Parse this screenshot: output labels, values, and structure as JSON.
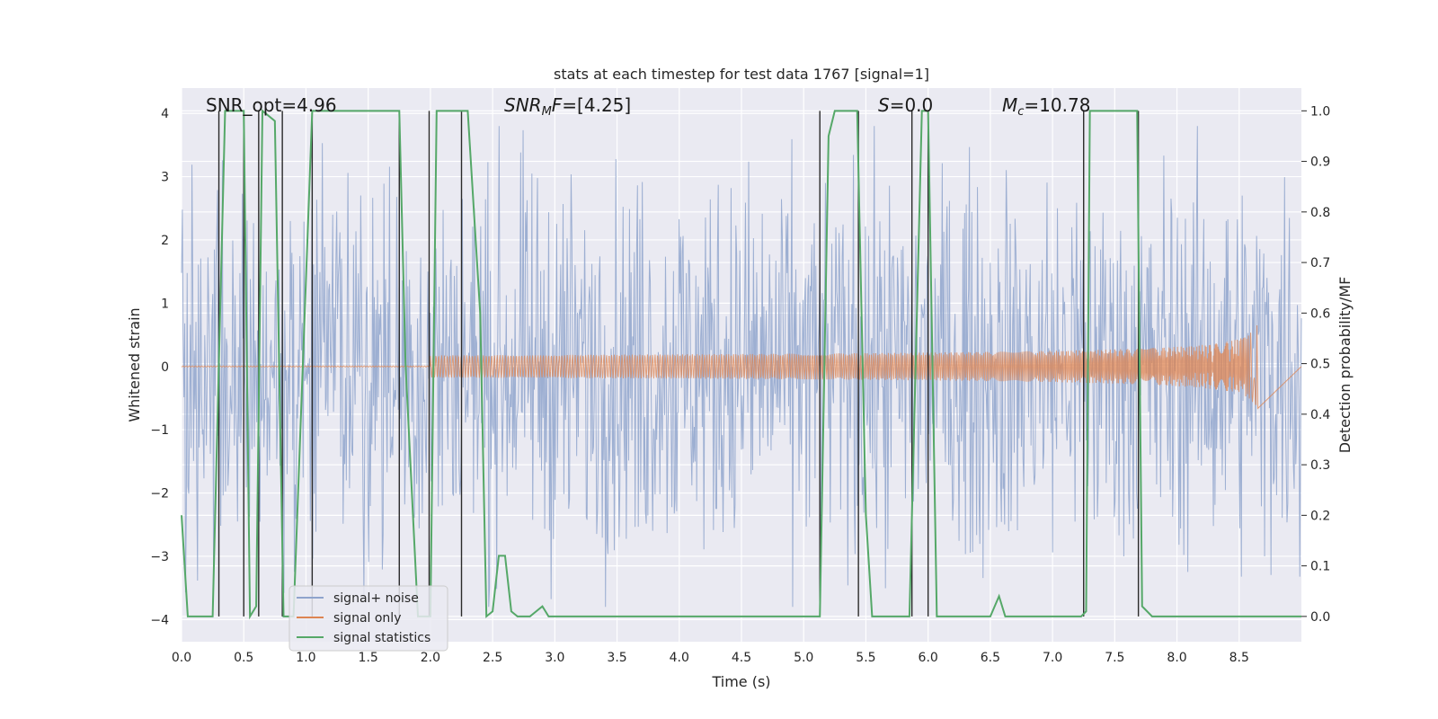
{
  "chart_data": {
    "type": "line",
    "title": "stats at each timestep for test data 1767 [signal=1]",
    "xlabel": "Time (s)",
    "ylabel_left": "Whitened strain",
    "ylabel_right": "Detection probability/MF",
    "xlim": [
      0.0,
      9.0
    ],
    "ylim_left": [
      -4.35,
      4.4
    ],
    "ylim_right": [
      -0.05,
      1.045
    ],
    "x_ticks": [
      "0.0",
      "0.5",
      "1.0",
      "1.5",
      "2.0",
      "2.5",
      "3.0",
      "3.5",
      "4.0",
      "4.5",
      "5.0",
      "5.5",
      "6.0",
      "6.5",
      "7.0",
      "7.5",
      "8.0",
      "8.5"
    ],
    "y_left_ticks": [
      "4",
      "3",
      "2",
      "1",
      "0",
      "−1",
      "−2",
      "−3",
      "−4"
    ],
    "y_right_ticks": [
      "1.0",
      "0.9",
      "0.8",
      "0.7",
      "0.6",
      "0.5",
      "0.4",
      "0.3",
      "0.2",
      "0.1",
      "0.0"
    ],
    "grid": true,
    "annotations": [
      {
        "text": "SNR_opt=4.96",
        "x": 0.2
      },
      {
        "text": "=[4.25]",
        "italic_prefix": "SNR",
        "italic_sub": "M",
        "italic_suffix": "F",
        "x": 2.6
      },
      {
        "text": "=0.0",
        "italic_prefix": "S",
        "x": 5.6
      },
      {
        "text": "=10.78",
        "italic_prefix": "M",
        "italic_sub": "c",
        "x": 6.6
      }
    ],
    "legend": {
      "placement": "lower-left",
      "entries": [
        "signal+ noise",
        "signal only",
        "signal statistics"
      ]
    },
    "series": [
      {
        "name": "signal+ noise",
        "color": "#8fa4cc",
        "kind": "noise",
        "amplitude_left": 2.3,
        "peak_left": 3.8
      },
      {
        "name": "signal only",
        "color": "#dd8452",
        "kind": "chirp",
        "t_merge": 8.65,
        "peak_left": 0.75
      },
      {
        "name": "signal statistics",
        "color": "#55a868",
        "axis": "right",
        "x": [
          0.0,
          0.05,
          0.25,
          0.3,
          0.35,
          0.5,
          0.55,
          0.6,
          0.65,
          0.75,
          0.82,
          0.9,
          1.05,
          1.1,
          1.5,
          1.75,
          1.8,
          1.9,
          2.0,
          2.05,
          2.2,
          2.3,
          2.4,
          2.45,
          2.5,
          2.55,
          2.6,
          2.65,
          2.7,
          2.8,
          2.9,
          2.95,
          3.0,
          3.1,
          3.5,
          4.0,
          4.5,
          5.0,
          5.13,
          5.2,
          5.25,
          5.3,
          5.43,
          5.5,
          5.55,
          5.6,
          5.85,
          5.9,
          5.95,
          6.0,
          6.07,
          6.1,
          6.5,
          6.57,
          6.62,
          7.0,
          7.23,
          7.27,
          7.3,
          7.5,
          7.68,
          7.72,
          7.8,
          8.0,
          8.5,
          9.0
        ],
        "y": [
          0.2,
          0.0,
          0.0,
          0.5,
          1.0,
          1.0,
          0.0,
          0.02,
          1.0,
          0.98,
          0.0,
          0.0,
          1.0,
          1.0,
          1.0,
          1.0,
          0.5,
          0.0,
          0.0,
          1.0,
          1.0,
          1.0,
          0.6,
          0.0,
          0.01,
          0.12,
          0.12,
          0.01,
          0.0,
          0.0,
          0.02,
          0.0,
          0.0,
          0.0,
          0.0,
          0.0,
          0.0,
          0.0,
          0.0,
          0.95,
          1.0,
          1.0,
          1.0,
          0.2,
          0.0,
          0.0,
          0.0,
          0.5,
          1.0,
          1.0,
          0.0,
          0.0,
          0.0,
          0.04,
          0.0,
          0.0,
          0.0,
          0.01,
          1.0,
          1.0,
          1.0,
          0.02,
          0.0,
          0.0,
          0.0,
          0.0
        ]
      },
      {
        "name": "",
        "color": "#2a2a2a",
        "kind": "vlines",
        "x": [
          0.3,
          0.5,
          0.62,
          0.81,
          1.05,
          1.75,
          1.99,
          2.25,
          5.13,
          5.44,
          5.87,
          6.0,
          7.25,
          7.69
        ]
      }
    ]
  }
}
